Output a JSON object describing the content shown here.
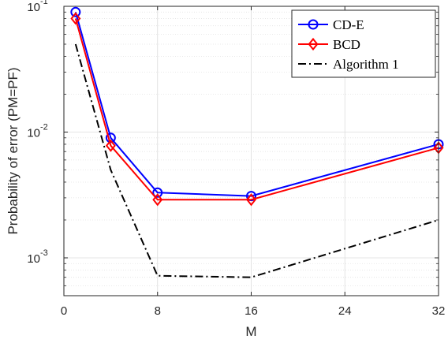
{
  "chart_data": {
    "type": "line",
    "x_scale": "linear",
    "y_scale": "log",
    "xlim": [
      0,
      32
    ],
    "ylim": [
      0.0005,
      0.1
    ],
    "xticks": [
      0,
      8,
      16,
      24,
      32
    ],
    "xtick_labels": [
      "0",
      "8",
      "16",
      "24",
      "32"
    ],
    "yticks": [
      0.001,
      0.01,
      0.1
    ],
    "ytick_labels": [
      {
        "base": "10",
        "exp": "-3"
      },
      {
        "base": "10",
        "exp": "-2"
      },
      {
        "base": "10",
        "exp": "-1"
      }
    ],
    "xlabel": "M",
    "ylabel": "Probability of error (PM=PF)",
    "grid": true,
    "minor_grid": true,
    "legend_position": "top-right",
    "series": [
      {
        "name": "CD-E",
        "color": "#0000ff",
        "marker": "circle",
        "line_style": "solid",
        "x": [
          1,
          4,
          8,
          16,
          32
        ],
        "values": [
          0.09,
          0.009,
          0.0033,
          0.0031,
          0.008
        ]
      },
      {
        "name": "BCD",
        "color": "#ff0000",
        "marker": "diamond",
        "line_style": "solid",
        "x": [
          1,
          4,
          8,
          16,
          32
        ],
        "values": [
          0.08,
          0.0078,
          0.0029,
          0.0029,
          0.0075
        ]
      },
      {
        "name": "Algorithm 1",
        "color": "#000000",
        "marker": "none",
        "line_style": "dashdot",
        "x": [
          1,
          4,
          8,
          16,
          32
        ],
        "values": [
          0.05,
          0.005,
          0.00072,
          0.0007,
          0.002
        ]
      }
    ]
  }
}
